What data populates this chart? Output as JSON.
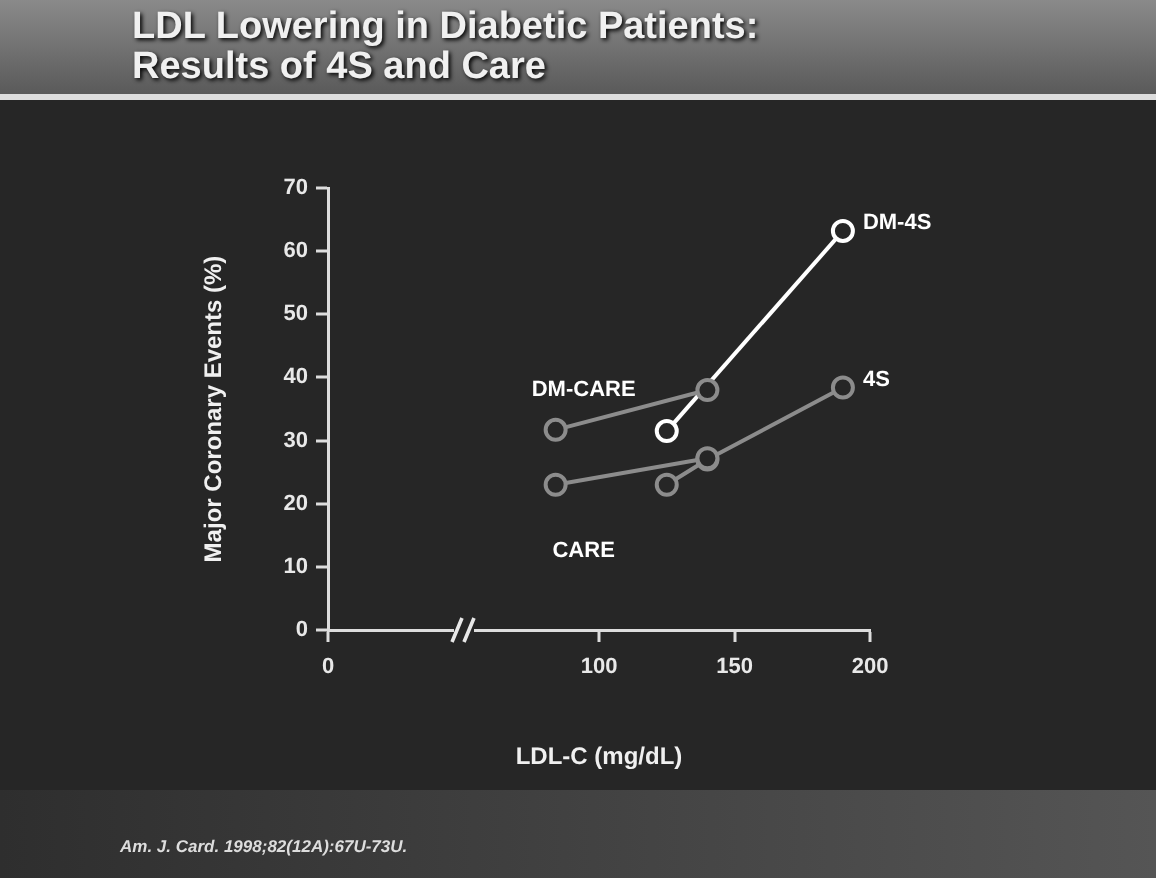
{
  "chart_data": {
    "type": "line",
    "title": "LDL Lowering in Diabetic Patients:\nResults of 4S and Care",
    "xlabel": "LDL-C (mg/dL)",
    "ylabel": "Major Coronary Events (%)",
    "series": [
      {
        "name": "DM-CARE",
        "color": "#8c8c8c",
        "x": [
          84,
          140
        ],
        "values": [
          31.7,
          38
        ]
      },
      {
        "name": "CARE",
        "color": "#8c8c8c",
        "x": [
          84,
          140
        ],
        "values": [
          23,
          27.2
        ]
      },
      {
        "name": "DM-4S",
        "color": "#ffffff",
        "x": [
          125,
          190
        ],
        "values": [
          31.5,
          63.2
        ]
      },
      {
        "name": "4S",
        "color": "#8c8c8c",
        "x": [
          125,
          140,
          190
        ],
        "values": [
          23,
          27,
          38.4
        ]
      }
    ],
    "xlim": [
      0,
      200
    ],
    "xticks": [
      0,
      100,
      150,
      200
    ],
    "ylim": [
      0,
      70
    ],
    "yticks": [
      0,
      10,
      20,
      30,
      40,
      50,
      60,
      70
    ],
    "grid": false,
    "legend": false,
    "marker": "circle",
    "line_style": "solid",
    "annotations": [
      "Am. J. Card. 1998;82(12A):67U-73U."
    ]
  }
}
